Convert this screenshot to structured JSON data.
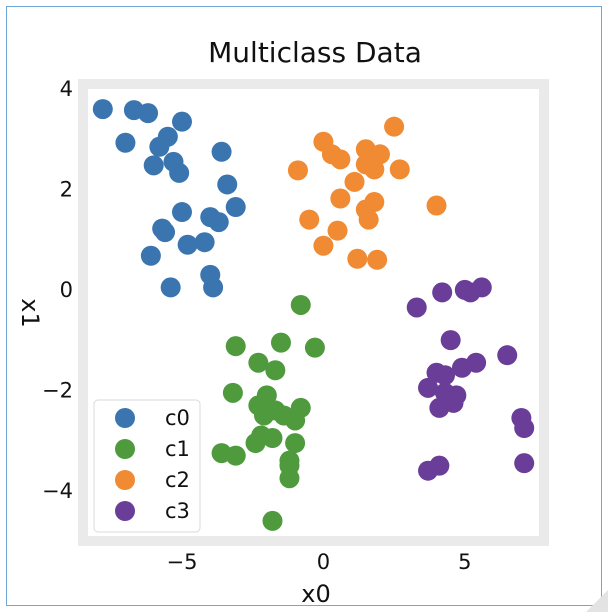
{
  "chart_data": {
    "type": "scatter",
    "title": "Multiclass Data",
    "xlabel": "x0",
    "ylabel": "x1",
    "xlim": [
      -8.5,
      7.8
    ],
    "ylim": [
      -5.0,
      4.1
    ],
    "xticks": [
      -5,
      0,
      5
    ],
    "xtick_labels": [
      "−5",
      "0",
      "5"
    ],
    "yticks": [
      4,
      2,
      0,
      -2,
      -4
    ],
    "ytick_labels": [
      "4",
      "2",
      "0",
      "−2",
      "−4"
    ],
    "grid": false,
    "legend_position": "lower-left",
    "series": [
      {
        "name": "c0",
        "color": "#3a75b0",
        "points": [
          [
            -7.8,
            3.6
          ],
          [
            -6.7,
            3.58
          ],
          [
            -6.2,
            3.52
          ],
          [
            -7.0,
            2.93
          ],
          [
            -5.8,
            2.85
          ],
          [
            -5.5,
            3.05
          ],
          [
            -5.0,
            3.35
          ],
          [
            -6.0,
            2.48
          ],
          [
            -5.3,
            2.55
          ],
          [
            -5.1,
            2.33
          ],
          [
            -3.6,
            2.75
          ],
          [
            -3.4,
            2.1
          ],
          [
            -5.0,
            1.55
          ],
          [
            -5.7,
            1.22
          ],
          [
            -5.6,
            1.15
          ],
          [
            -4.0,
            1.45
          ],
          [
            -3.7,
            1.35
          ],
          [
            -3.1,
            1.65
          ],
          [
            -4.8,
            0.9
          ],
          [
            -4.2,
            0.95
          ],
          [
            -6.1,
            0.68
          ],
          [
            -4.0,
            0.3
          ],
          [
            -5.4,
            0.05
          ],
          [
            -3.9,
            0.05
          ]
        ]
      },
      {
        "name": "c1",
        "color": "#4e9a3d",
        "points": [
          [
            -0.8,
            -0.3
          ],
          [
            -1.5,
            -1.05
          ],
          [
            -0.3,
            -1.15
          ],
          [
            -3.1,
            -1.12
          ],
          [
            -2.3,
            -1.45
          ],
          [
            -1.7,
            -1.6
          ],
          [
            -3.2,
            -2.05
          ],
          [
            -2.0,
            -2.1
          ],
          [
            -2.3,
            -2.3
          ],
          [
            -1.7,
            -2.4
          ],
          [
            -2.1,
            -2.5
          ],
          [
            -0.8,
            -2.35
          ],
          [
            -1.4,
            -2.5
          ],
          [
            -1.0,
            -2.6
          ],
          [
            -2.2,
            -2.9
          ],
          [
            -1.8,
            -2.95
          ],
          [
            -2.4,
            -3.05
          ],
          [
            -1.0,
            -3.05
          ],
          [
            -3.6,
            -3.25
          ],
          [
            -3.1,
            -3.3
          ],
          [
            -1.2,
            -3.4
          ],
          [
            -1.2,
            -3.5
          ],
          [
            -1.2,
            -3.75
          ],
          [
            -1.8,
            -4.6
          ]
        ]
      },
      {
        "name": "c2",
        "color": "#f08a33",
        "points": [
          [
            0.0,
            2.95
          ],
          [
            0.3,
            2.7
          ],
          [
            0.6,
            2.6
          ],
          [
            1.5,
            2.8
          ],
          [
            1.5,
            2.5
          ],
          [
            2.0,
            2.7
          ],
          [
            2.5,
            3.25
          ],
          [
            2.7,
            2.4
          ],
          [
            1.8,
            2.4
          ],
          [
            1.1,
            2.15
          ],
          [
            -0.9,
            2.38
          ],
          [
            0.6,
            1.82
          ],
          [
            1.8,
            1.75
          ],
          [
            1.5,
            1.6
          ],
          [
            -0.5,
            1.4
          ],
          [
            1.6,
            1.4
          ],
          [
            4.0,
            1.68
          ],
          [
            0.5,
            1.18
          ],
          [
            0.0,
            0.88
          ],
          [
            1.2,
            0.62
          ],
          [
            1.9,
            0.6
          ]
        ]
      },
      {
        "name": "c3",
        "color": "#6a3d98",
        "points": [
          [
            3.3,
            -0.35
          ],
          [
            4.2,
            -0.05
          ],
          [
            5.0,
            0.0
          ],
          [
            5.2,
            -0.05
          ],
          [
            5.6,
            0.05
          ],
          [
            4.5,
            -1.0
          ],
          [
            6.5,
            -1.3
          ],
          [
            5.4,
            -1.45
          ],
          [
            4.9,
            -1.55
          ],
          [
            4.0,
            -1.65
          ],
          [
            4.3,
            -1.7
          ],
          [
            3.7,
            -1.95
          ],
          [
            4.3,
            -2.05
          ],
          [
            4.7,
            -2.1
          ],
          [
            4.6,
            -2.25
          ],
          [
            4.1,
            -2.35
          ],
          [
            7.0,
            -2.55
          ],
          [
            7.1,
            -2.75
          ],
          [
            3.7,
            -3.6
          ],
          [
            4.1,
            -3.5
          ],
          [
            7.1,
            -3.45
          ]
        ]
      }
    ]
  }
}
